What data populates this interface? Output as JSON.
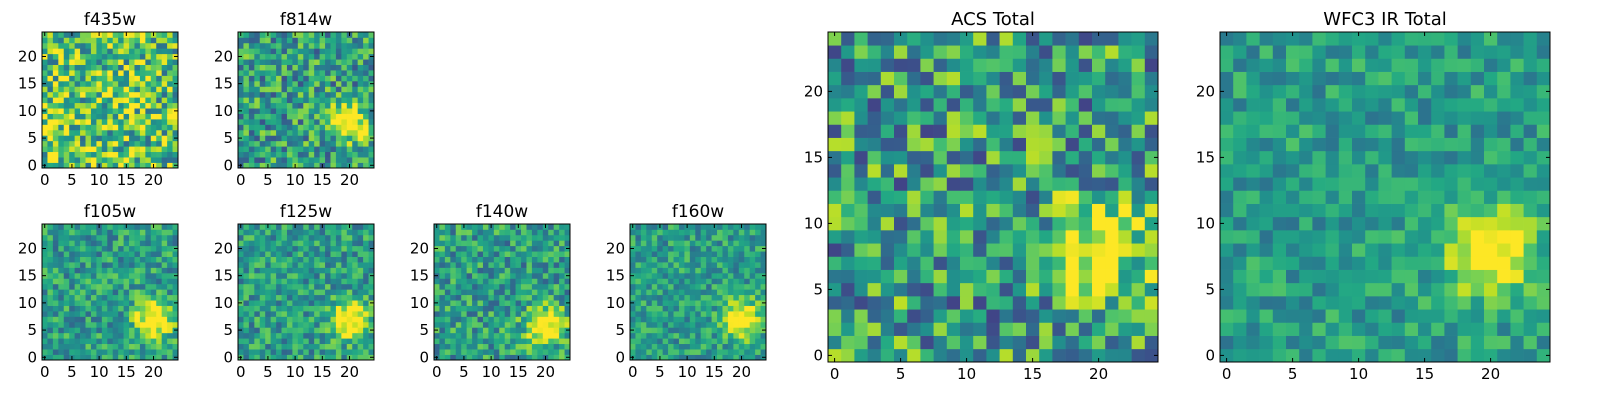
{
  "chart_data": [
    {
      "type": "heatmap",
      "title": "f435w",
      "colormap": "viridis",
      "xticks": [
        0,
        5,
        10,
        15,
        20
      ],
      "yticks": [
        0,
        5,
        10,
        15,
        20
      ],
      "grid": false,
      "blob": null,
      "noise": 0.85
    },
    {
      "type": "heatmap",
      "title": "f814w",
      "colormap": "viridis",
      "xticks": [
        0,
        5,
        10,
        15,
        20
      ],
      "yticks": [
        0,
        5,
        10,
        15,
        20
      ],
      "grid": false,
      "blob": {
        "x": 20,
        "y": 8
      },
      "noise": 0.6
    },
    {
      "type": "heatmap",
      "title": "f105w",
      "colormap": "viridis",
      "xticks": [
        0,
        5,
        10,
        15,
        20
      ],
      "yticks": [
        0,
        5,
        10,
        15,
        20
      ],
      "grid": false,
      "blob": {
        "x": 20,
        "y": 7
      },
      "noise": 0.45
    },
    {
      "type": "heatmap",
      "title": "f125w",
      "colormap": "viridis",
      "xticks": [
        0,
        5,
        10,
        15,
        20
      ],
      "yticks": [
        0,
        5,
        10,
        15,
        20
      ],
      "grid": false,
      "blob": {
        "x": 20,
        "y": 7
      },
      "noise": 0.45
    },
    {
      "type": "heatmap",
      "title": "f140w",
      "colormap": "viridis",
      "xticks": [
        0,
        5,
        10,
        15,
        20
      ],
      "yticks": [
        0,
        5,
        10,
        15,
        20
      ],
      "grid": false,
      "blob": {
        "x": 20,
        "y": 6
      },
      "noise": 0.5
    },
    {
      "type": "heatmap",
      "title": "f160w",
      "colormap": "viridis",
      "xticks": [
        0,
        5,
        10,
        15,
        20
      ],
      "yticks": [
        0,
        5,
        10,
        15,
        20
      ],
      "grid": false,
      "blob": {
        "x": 20,
        "y": 7
      },
      "noise": 0.4
    },
    {
      "type": "heatmap",
      "title": "ACS Total",
      "colormap": "viridis",
      "xticks": [
        0,
        5,
        10,
        15,
        20
      ],
      "yticks": [
        0,
        5,
        10,
        15,
        20
      ],
      "grid": false,
      "blob": {
        "x": 20,
        "y": 8
      },
      "noise": 0.7
    },
    {
      "type": "heatmap",
      "title": "WFC3 IR Total",
      "colormap": "viridis",
      "xticks": [
        0,
        5,
        10,
        15,
        20
      ],
      "yticks": [
        0,
        5,
        10,
        15,
        20
      ],
      "grid": false,
      "blob": {
        "x": 20,
        "y": 8
      },
      "noise": 0.35
    }
  ],
  "grid_size": [
    25,
    25
  ]
}
